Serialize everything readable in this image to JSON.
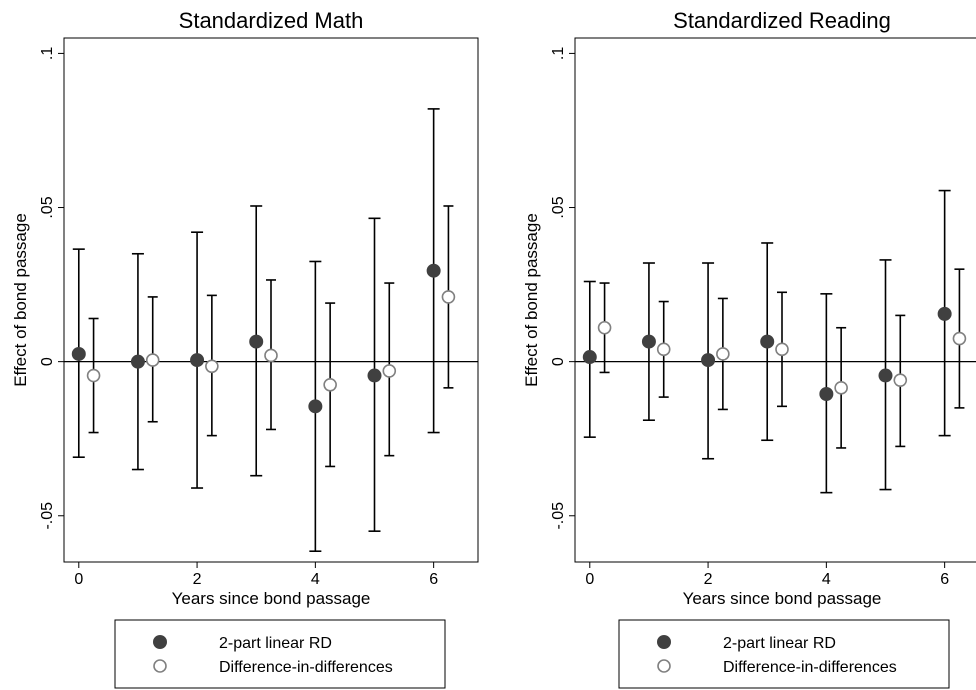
{
  "chart_data": [
    {
      "type": "scatter",
      "title": "Standardized Math",
      "xlabel": "Years since bond passage",
      "ylabel": "Effect of bond passage",
      "xlim": [
        -0.25,
        6.75
      ],
      "ylim": [
        -0.065,
        0.105
      ],
      "xticks": [
        0,
        2,
        4,
        6
      ],
      "xtick_labels": [
        "0",
        "2",
        "4",
        "6"
      ],
      "yticks": [
        -0.05,
        0,
        0.05,
        0.1
      ],
      "ytick_labels": [
        "-.05",
        "0",
        ".05",
        ".1"
      ],
      "reference_line_y": 0,
      "grid": false,
      "legend_position": "bottom",
      "series": [
        {
          "name": "2-part linear RD",
          "marker": "filled-circle",
          "color": "#404040",
          "x": [
            0,
            1,
            2,
            3,
            4,
            5,
            6
          ],
          "y": [
            0.0025,
            0.0,
            0.0005,
            0.0065,
            -0.0145,
            -0.0045,
            0.0295
          ],
          "ci_low": [
            -0.031,
            -0.035,
            -0.041,
            -0.037,
            -0.0615,
            -0.055,
            -0.023
          ],
          "ci_high": [
            0.0365,
            0.035,
            0.042,
            0.0505,
            0.0325,
            0.0465,
            0.082
          ]
        },
        {
          "name": "Difference-in-differences",
          "marker": "hollow-circle",
          "color": "#808080",
          "x": [
            0.25,
            1.25,
            2.25,
            3.25,
            4.25,
            5.25,
            6.25
          ],
          "y": [
            -0.0045,
            0.0005,
            -0.0015,
            0.002,
            -0.0075,
            -0.003,
            0.021
          ],
          "ci_low": [
            -0.023,
            -0.0195,
            -0.024,
            -0.022,
            -0.034,
            -0.0305,
            -0.0085
          ],
          "ci_high": [
            0.014,
            0.021,
            0.0215,
            0.0265,
            0.019,
            0.0255,
            0.0505
          ]
        }
      ]
    },
    {
      "type": "scatter",
      "title": "Standardized Reading",
      "xlabel": "Years since bond passage",
      "ylabel": "Effect of bond passage",
      "xlim": [
        -0.25,
        6.75
      ],
      "ylim": [
        -0.065,
        0.105
      ],
      "xticks": [
        0,
        2,
        4,
        6
      ],
      "xtick_labels": [
        "0",
        "2",
        "4",
        "6"
      ],
      "yticks": [
        -0.05,
        0,
        0.05,
        0.1
      ],
      "ytick_labels": [
        "-.05",
        "0",
        ".05",
        ".1"
      ],
      "reference_line_y": 0,
      "grid": false,
      "legend_position": "bottom",
      "series": [
        {
          "name": "2-part linear RD",
          "marker": "filled-circle",
          "color": "#404040",
          "x": [
            0,
            1,
            2,
            3,
            4,
            5,
            6
          ],
          "y": [
            0.0015,
            0.0065,
            0.0005,
            0.0065,
            -0.0105,
            -0.0045,
            0.0155
          ],
          "ci_low": [
            -0.0245,
            -0.019,
            -0.0315,
            -0.0255,
            -0.0425,
            -0.0415,
            -0.024
          ],
          "ci_high": [
            0.026,
            0.032,
            0.032,
            0.0385,
            0.022,
            0.033,
            0.0555
          ]
        },
        {
          "name": "Difference-in-differences",
          "marker": "hollow-circle",
          "color": "#808080",
          "x": [
            0.25,
            1.25,
            2.25,
            3.25,
            4.25,
            5.25,
            6.25
          ],
          "y": [
            0.011,
            0.004,
            0.0025,
            0.004,
            -0.0085,
            -0.006,
            0.0075
          ],
          "ci_low": [
            -0.0035,
            -0.0115,
            -0.0155,
            -0.0145,
            -0.028,
            -0.0275,
            -0.015
          ],
          "ci_high": [
            0.0255,
            0.0195,
            0.0205,
            0.0225,
            0.011,
            0.015,
            0.03
          ]
        }
      ]
    }
  ]
}
